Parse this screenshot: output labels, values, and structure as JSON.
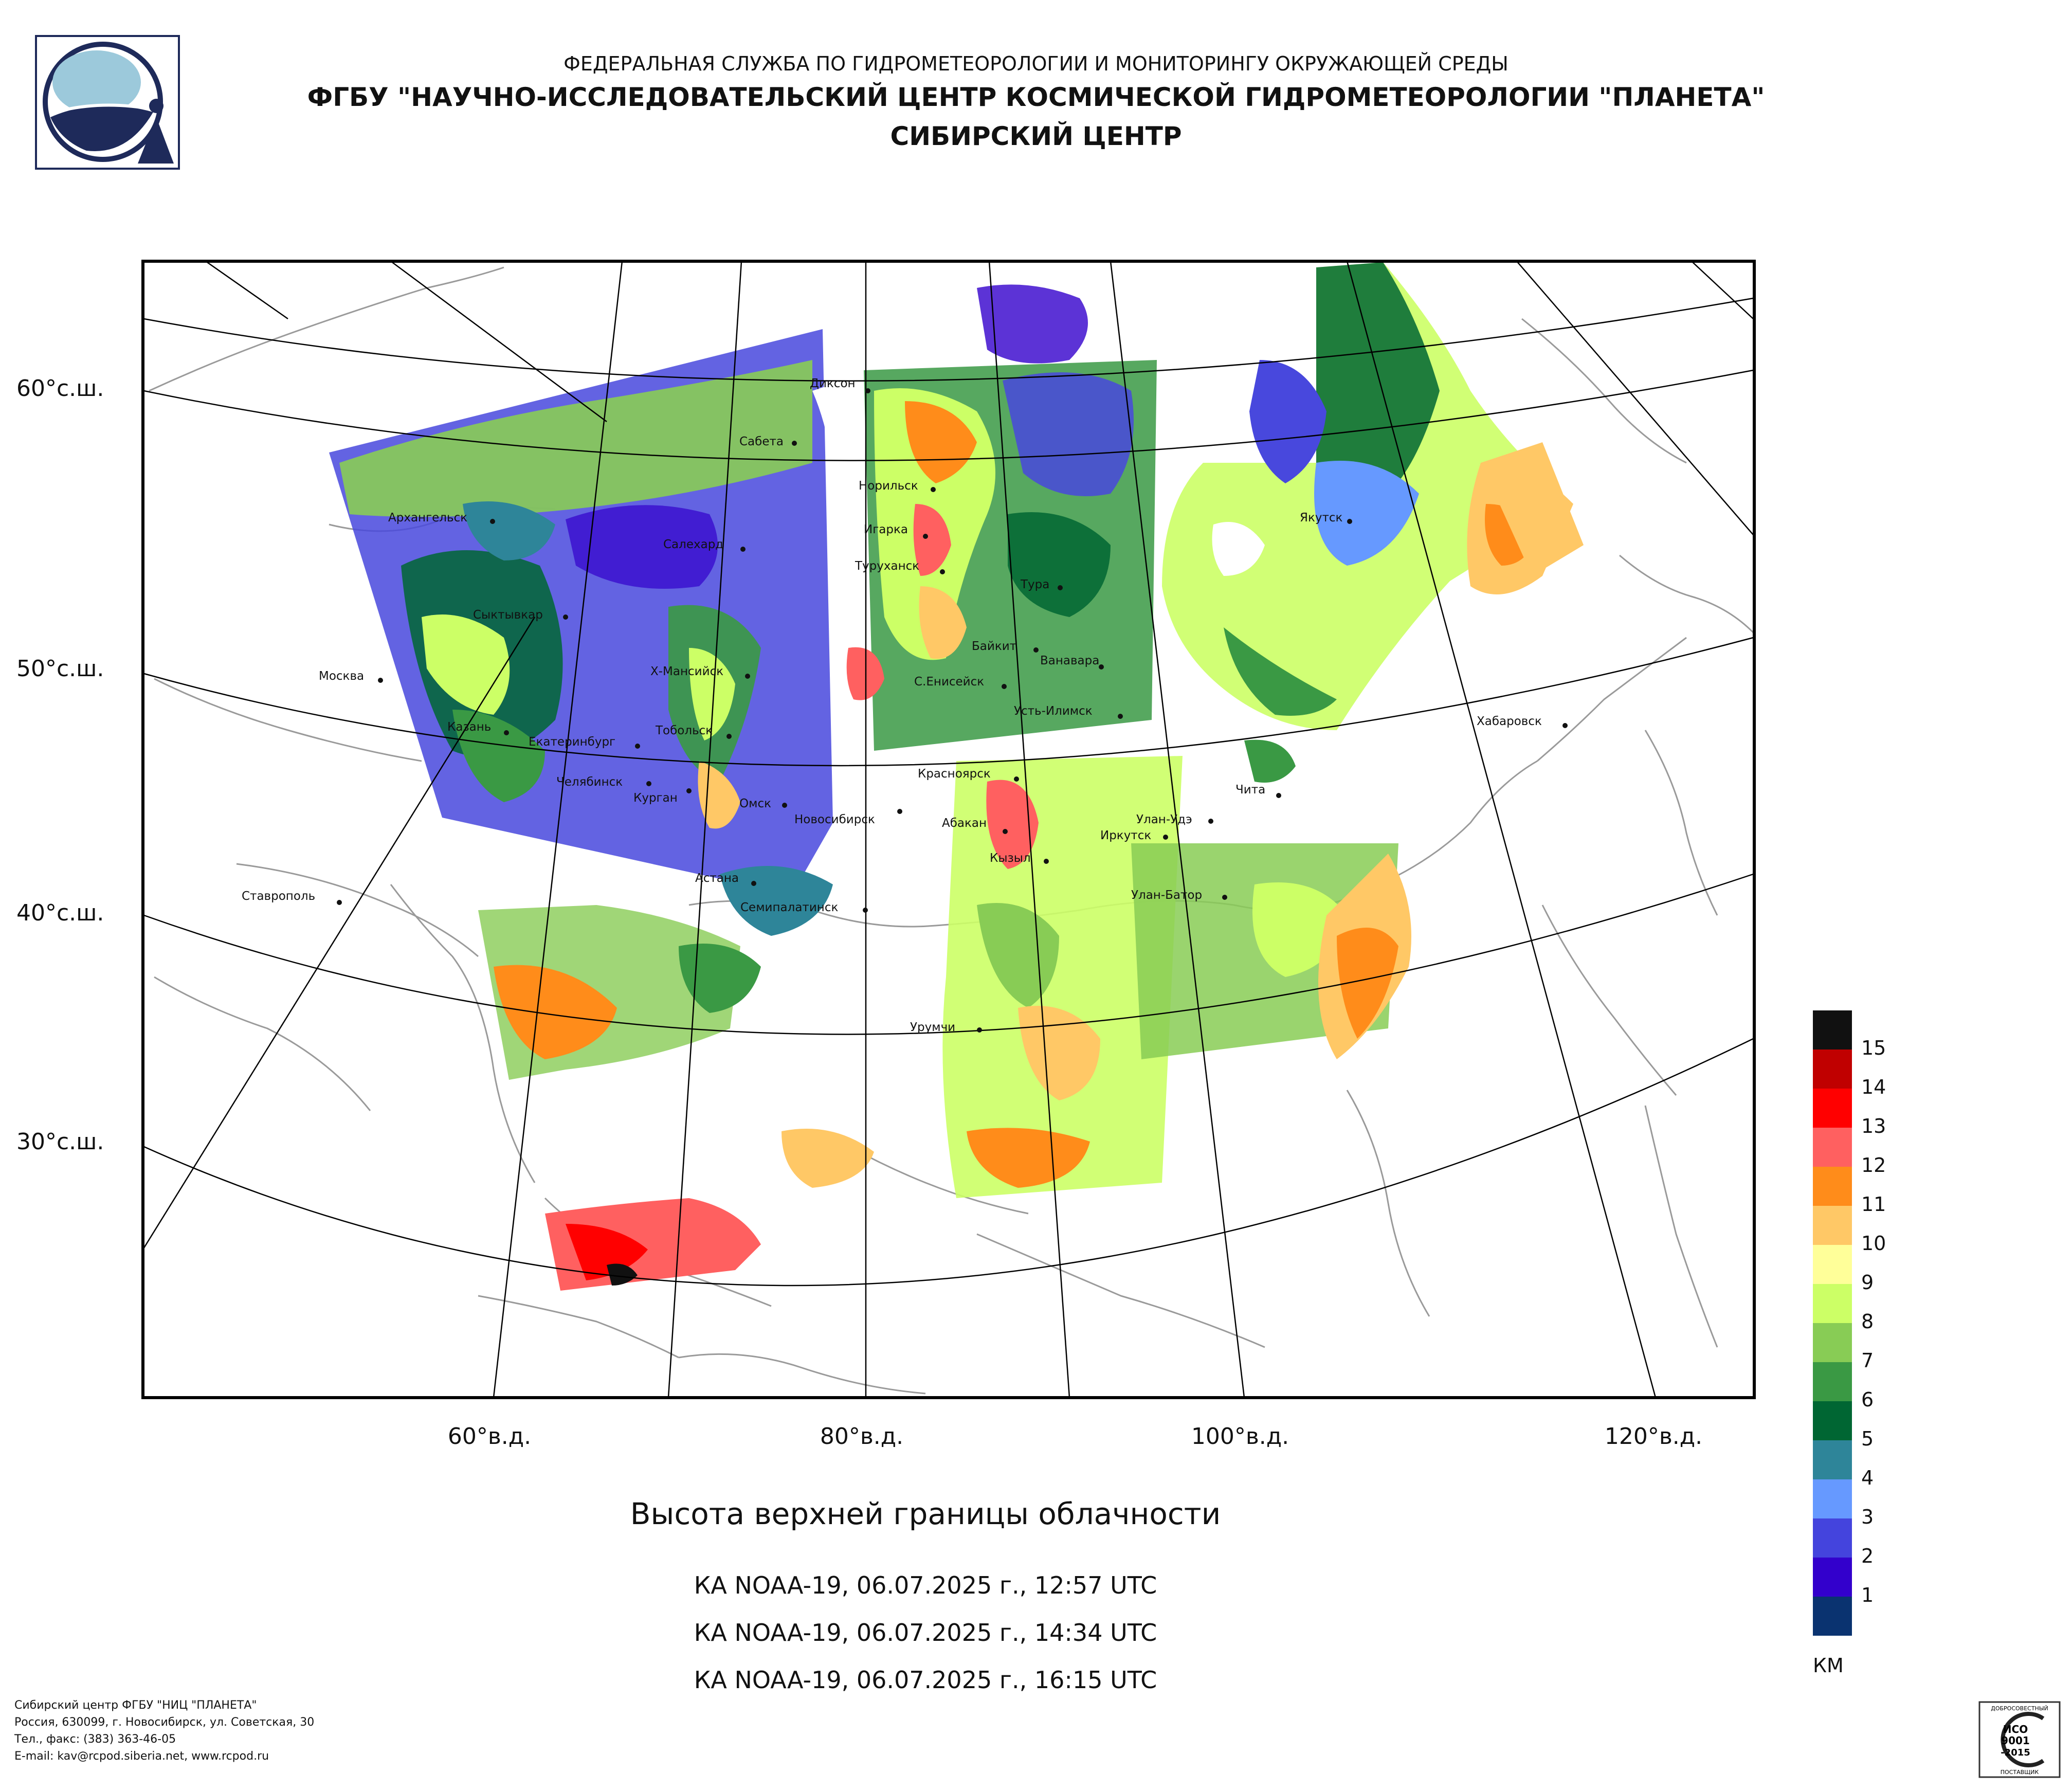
{
  "header": {
    "line1": "ФЕДЕРАЛЬНАЯ СЛУЖБА ПО ГИДРОМЕТЕОРОЛОГИИ И МОНИТОРИНГУ ОКРУЖАЮЩЕЙ СРЕДЫ",
    "line2": "ФГБУ \"НАУЧНО-ИССЛЕДОВАТЕЛЬСКИЙ ЦЕНТР КОСМИЧЕСКОЙ ГИДРОМЕТЕОРОЛОГИИ \"ПЛАНЕТА\"",
    "line3": "СИБИРСКИЙ ЦЕНТР"
  },
  "map": {
    "lat_labels": [
      "60°с.ш.",
      "50°с.ш.",
      "40°с.ш.",
      "30°с.ш."
    ],
    "lon_labels": [
      "60°в.д.",
      "80°в.д.",
      "100°в.д.",
      "120°в.д."
    ],
    "cities": [
      "Диксон",
      "Сабета",
      "Норильск",
      "Архангельск",
      "Салехард",
      "Игарка",
      "Туруханск",
      "Тура",
      "Якутск",
      "Сыктывкар",
      "Байкит",
      "Ванавара",
      "Москва",
      "Х-Мансийск",
      "С.Енисейск",
      "Усть-Илимск",
      "Хабаровск",
      "Казань",
      "Тобольск",
      "Екатеринбург",
      "Красноярск",
      "Челябинск",
      "Курган",
      "Омск",
      "Новосибирск",
      "Абакан",
      "Чита",
      "Улан-Удэ",
      "Иркутск",
      "Кызыл",
      "Ставрополь",
      "Астана",
      "Улан-Батор",
      "Семипалатинск",
      "Урумчи"
    ],
    "colors": {
      "land_fill": "#ffffff",
      "border": "#9a9a9a",
      "graticule": "#000000",
      "frame": "#000000"
    }
  },
  "caption": "Высота верхней границы облачности",
  "passes": [
    "КА NOAA-19, 06.07.2025 г., 12:57 UTC",
    "КА NOAA-19, 06.07.2025 г., 14:34 UTC",
    "КА NOAA-19, 06.07.2025 г., 16:15 UTC"
  ],
  "legend": {
    "unit": "КМ",
    "values": [
      "15",
      "14",
      "13",
      "12",
      "11",
      "10",
      "9",
      "8",
      "7",
      "6",
      "5",
      "4",
      "3",
      "2",
      "1"
    ],
    "colors": [
      "#111111",
      "#c00000",
      "#ff0000",
      "#ff6060",
      "#ff8c1a",
      "#ffc866",
      "#ffff99",
      "#ccff66",
      "#88cc55",
      "#3a9944",
      "#006633",
      "#2e8599",
      "#6699ff",
      "#4444dd",
      "#3300cc",
      "#0a3370"
    ]
  },
  "footer": [
    "Сибирский центр ФГБУ \"НИЦ \"ПЛАНЕТА\"",
    "Россия, 630099, г. Новосибирск, ул. Советская, 30",
    "Тел., факс: (383) 363-46-05",
    "E-mail: kav@rcpod.siberia.net, www.rcpod.ru"
  ],
  "cert": {
    "top": "ДОБРОСОВЕСТНЫЙ",
    "line1": "ИСО",
    "line2": "9001",
    "line3": "-2015",
    "bottom": "ПОСТАВЩИК"
  }
}
